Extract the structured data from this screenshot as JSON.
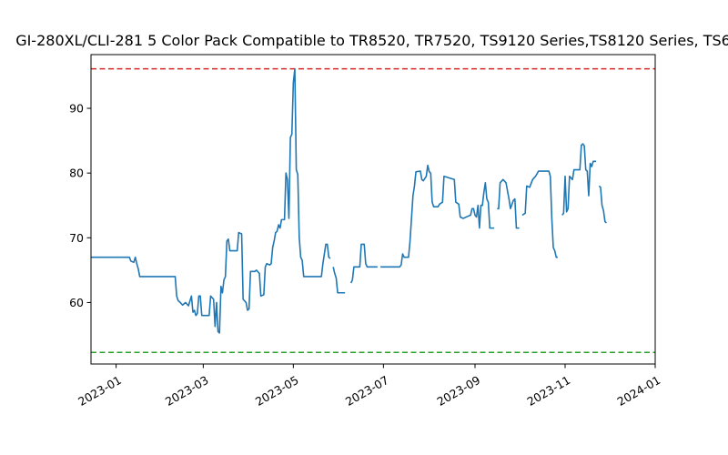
{
  "chart_data": {
    "type": "line",
    "title": "GI-280XL/CLI-281 5 Color Pack Compatible to TR8520, TR7520, TS9120 Series,TS8120 Series, TS6",
    "xlabel": "",
    "ylabel": "",
    "x_axis_type": "date",
    "xlim": [
      "2022-12-15",
      "2024-01-01"
    ],
    "ylim": [
      50.5,
      98.3
    ],
    "xticks": [
      "2023-01",
      "2023-03",
      "2023-05",
      "2023-07",
      "2023-09",
      "2023-11",
      "2024-01"
    ],
    "yticks": [
      60,
      70,
      80,
      90
    ],
    "grid": false,
    "legend": "none",
    "series_color": "#1f77b4",
    "reference_lines": [
      {
        "value": 96.1,
        "color": "#d62728",
        "style": "dashed"
      },
      {
        "value": 52.3,
        "color": "#2ca02c",
        "style": "dashed"
      }
    ],
    "series": [
      {
        "segments": [
          [
            [
              "2022-12-15",
              67.0
            ],
            [
              "2023-01-10",
              67.0
            ],
            [
              "2023-01-11",
              66.4
            ],
            [
              "2023-01-13",
              66.2
            ],
            [
              "2023-01-14",
              67.0
            ],
            [
              "2023-01-15",
              66.0
            ],
            [
              "2023-01-16",
              65.2
            ],
            [
              "2023-01-17",
              64.0
            ],
            [
              "2023-02-10",
              64.0
            ],
            [
              "2023-02-11",
              61.0
            ],
            [
              "2023-02-12",
              60.3
            ],
            [
              "2023-02-13",
              60.1
            ],
            [
              "2023-02-15",
              59.6
            ],
            [
              "2023-02-17",
              60.0
            ],
            [
              "2023-02-19",
              59.5
            ],
            [
              "2023-02-21",
              61.0
            ],
            [
              "2023-02-22",
              58.5
            ],
            [
              "2023-02-23",
              58.8
            ],
            [
              "2023-02-24",
              58.0
            ],
            [
              "2023-02-25",
              58.3
            ],
            [
              "2023-02-26",
              61.0
            ],
            [
              "2023-02-27",
              61.0
            ],
            [
              "2023-02-28",
              58.0
            ],
            [
              "2023-03-05",
              58.0
            ],
            [
              "2023-03-06",
              61.0
            ],
            [
              "2023-03-08",
              60.5
            ],
            [
              "2023-03-09",
              56.3
            ],
            [
              "2023-03-10",
              60.0
            ],
            [
              "2023-03-11",
              55.5
            ],
            [
              "2023-03-12",
              55.3
            ],
            [
              "2023-03-13",
              62.5
            ],
            [
              "2023-03-14",
              61.5
            ],
            [
              "2023-03-15",
              63.5
            ],
            [
              "2023-03-16",
              64.0
            ],
            [
              "2023-03-17",
              69.5
            ],
            [
              "2023-03-18",
              69.8
            ],
            [
              "2023-03-19",
              68.0
            ],
            [
              "2023-03-24",
              68.0
            ],
            [
              "2023-03-25",
              70.8
            ],
            [
              "2023-03-27",
              70.6
            ],
            [
              "2023-03-28",
              60.5
            ],
            [
              "2023-03-30",
              60.0
            ],
            [
              "2023-03-31",
              58.8
            ],
            [
              "2023-04-01",
              59.0
            ],
            [
              "2023-04-02",
              64.8
            ],
            [
              "2023-04-05",
              64.8
            ],
            [
              "2023-04-06",
              65.0
            ],
            [
              "2023-04-08",
              64.5
            ],
            [
              "2023-04-09",
              61.0
            ],
            [
              "2023-04-11",
              61.2
            ],
            [
              "2023-04-12",
              65.5
            ],
            [
              "2023-04-13",
              66.0
            ],
            [
              "2023-04-15",
              65.8
            ],
            [
              "2023-04-16",
              66.0
            ],
            [
              "2023-04-17",
              68.5
            ],
            [
              "2023-04-18",
              69.5
            ],
            [
              "2023-04-19",
              70.8
            ],
            [
              "2023-04-20",
              71.0
            ],
            [
              "2023-04-21",
              72.0
            ],
            [
              "2023-04-22",
              71.5
            ],
            [
              "2023-04-23",
              72.8
            ],
            [
              "2023-04-25",
              72.8
            ],
            [
              "2023-04-26",
              80.0
            ],
            [
              "2023-04-27",
              79.0
            ],
            [
              "2023-04-28",
              73.0
            ],
            [
              "2023-04-29",
              85.5
            ],
            [
              "2023-04-30",
              86.0
            ],
            [
              "2023-05-01",
              94.0
            ],
            [
              "2023-05-02",
              96.1
            ],
            [
              "2023-05-03",
              80.5
            ],
            [
              "2023-05-04",
              79.8
            ],
            [
              "2023-05-05",
              70.0
            ],
            [
              "2023-05-06",
              67.0
            ],
            [
              "2023-05-07",
              66.5
            ],
            [
              "2023-05-08",
              64.0
            ],
            [
              "2023-05-20",
              64.0
            ],
            [
              "2023-05-21",
              66.0
            ],
            [
              "2023-05-22",
              67.5
            ],
            [
              "2023-05-23",
              69.0
            ],
            [
              "2023-05-24",
              69.0
            ],
            [
              "2023-05-25",
              67.0
            ],
            [
              "2023-05-26",
              66.8
            ]
          ],
          [
            [
              "2023-05-28",
              65.5
            ],
            [
              "2023-05-29",
              64.5
            ],
            [
              "2023-05-30",
              63.8
            ],
            [
              "2023-05-31",
              61.5
            ],
            [
              "2023-06-05",
              61.5
            ]
          ],
          [
            [
              "2023-06-09",
              63.0
            ],
            [
              "2023-06-10",
              63.5
            ],
            [
              "2023-06-11",
              65.5
            ],
            [
              "2023-06-15",
              65.5
            ],
            [
              "2023-06-16",
              69.0
            ],
            [
              "2023-06-18",
              69.0
            ],
            [
              "2023-06-19",
              66.0
            ],
            [
              "2023-06-20",
              65.5
            ],
            [
              "2023-06-27",
              65.5
            ]
          ],
          [
            [
              "2023-06-29",
              65.5
            ],
            [
              "2023-07-12",
              65.5
            ],
            [
              "2023-07-13",
              65.8
            ],
            [
              "2023-07-14",
              67.5
            ],
            [
              "2023-07-15",
              67.0
            ],
            [
              "2023-07-18",
              67.0
            ],
            [
              "2023-07-19",
              69.5
            ],
            [
              "2023-07-20",
              73.0
            ],
            [
              "2023-07-21",
              76.5
            ],
            [
              "2023-07-22",
              78.0
            ],
            [
              "2023-07-23",
              80.2
            ],
            [
              "2023-07-26",
              80.3
            ],
            [
              "2023-07-27",
              79.0
            ],
            [
              "2023-07-28",
              78.8
            ],
            [
              "2023-07-30",
              79.5
            ],
            [
              "2023-07-31",
              81.2
            ],
            [
              "2023-08-01",
              80.2
            ],
            [
              "2023-08-02",
              80.0
            ],
            [
              "2023-08-03",
              75.5
            ],
            [
              "2023-08-04",
              74.8
            ],
            [
              "2023-08-07",
              74.8
            ],
            [
              "2023-08-08",
              75.2
            ],
            [
              "2023-08-10",
              75.5
            ],
            [
              "2023-08-11",
              79.5
            ],
            [
              "2023-08-18",
              79.0
            ],
            [
              "2023-08-19",
              75.5
            ],
            [
              "2023-08-21",
              75.2
            ],
            [
              "2023-08-22",
              73.2
            ],
            [
              "2023-08-24",
              73.0
            ],
            [
              "2023-08-27",
              73.3
            ],
            [
              "2023-08-29",
              73.5
            ],
            [
              "2023-08-30",
              74.5
            ],
            [
              "2023-08-31",
              74.5
            ],
            [
              "2023-09-01",
              73.5
            ],
            [
              "2023-09-02",
              73.2
            ],
            [
              "2023-09-03",
              75.0
            ],
            [
              "2023-09-04",
              71.5
            ],
            [
              "2023-09-05",
              75.0
            ],
            [
              "2023-09-06",
              75.0
            ],
            [
              "2023-09-07",
              77.0
            ],
            [
              "2023-09-08",
              78.5
            ],
            [
              "2023-09-09",
              76.0
            ],
            [
              "2023-09-10",
              75.5
            ],
            [
              "2023-09-11",
              71.5
            ],
            [
              "2023-09-14",
              71.5
            ]
          ],
          [
            [
              "2023-09-16",
              74.5
            ],
            [
              "2023-09-17",
              74.5
            ],
            [
              "2023-09-18",
              78.5
            ],
            [
              "2023-09-20",
              79.0
            ],
            [
              "2023-09-22",
              78.5
            ],
            [
              "2023-09-24",
              76.0
            ],
            [
              "2023-09-25",
              74.5
            ],
            [
              "2023-09-27",
              75.8
            ],
            [
              "2023-09-28",
              76.0
            ],
            [
              "2023-09-29",
              71.5
            ],
            [
              "2023-10-01",
              71.5
            ]
          ],
          [
            [
              "2023-10-03",
              73.5
            ],
            [
              "2023-10-05",
              73.8
            ],
            [
              "2023-10-06",
              78.0
            ],
            [
              "2023-10-08",
              77.8
            ],
            [
              "2023-10-10",
              79.0
            ],
            [
              "2023-10-12",
              79.5
            ],
            [
              "2023-10-14",
              80.3
            ],
            [
              "2023-10-21",
              80.3
            ],
            [
              "2023-10-22",
              79.5
            ],
            [
              "2023-10-23",
              73.0
            ],
            [
              "2023-10-24",
              68.5
            ],
            [
              "2023-10-25",
              68.0
            ],
            [
              "2023-10-26",
              67.0
            ],
            [
              "2023-10-27",
              67.0
            ]
          ],
          [
            [
              "2023-10-30",
              73.5
            ],
            [
              "2023-10-31",
              73.8
            ],
            [
              "2023-11-01",
              79.5
            ],
            [
              "2023-11-02",
              74.0
            ],
            [
              "2023-11-03",
              74.5
            ],
            [
              "2023-11-04",
              79.5
            ],
            [
              "2023-11-06",
              79.0
            ],
            [
              "2023-11-07",
              80.5
            ],
            [
              "2023-11-11",
              80.5
            ],
            [
              "2023-11-12",
              84.3
            ],
            [
              "2023-11-13",
              84.5
            ],
            [
              "2023-11-14",
              84.2
            ],
            [
              "2023-11-15",
              80.5
            ],
            [
              "2023-11-16",
              80.3
            ],
            [
              "2023-11-17",
              76.5
            ],
            [
              "2023-11-18",
              81.5
            ],
            [
              "2023-11-19",
              81.0
            ],
            [
              "2023-11-20",
              81.8
            ],
            [
              "2023-11-22",
              81.8
            ]
          ],
          [
            [
              "2023-11-24",
              78.0
            ],
            [
              "2023-11-25",
              77.8
            ],
            [
              "2023-11-26",
              75.0
            ],
            [
              "2023-11-27",
              74.2
            ],
            [
              "2023-11-28",
              72.5
            ],
            [
              "2023-11-29",
              72.3
            ]
          ]
        ]
      }
    ]
  }
}
